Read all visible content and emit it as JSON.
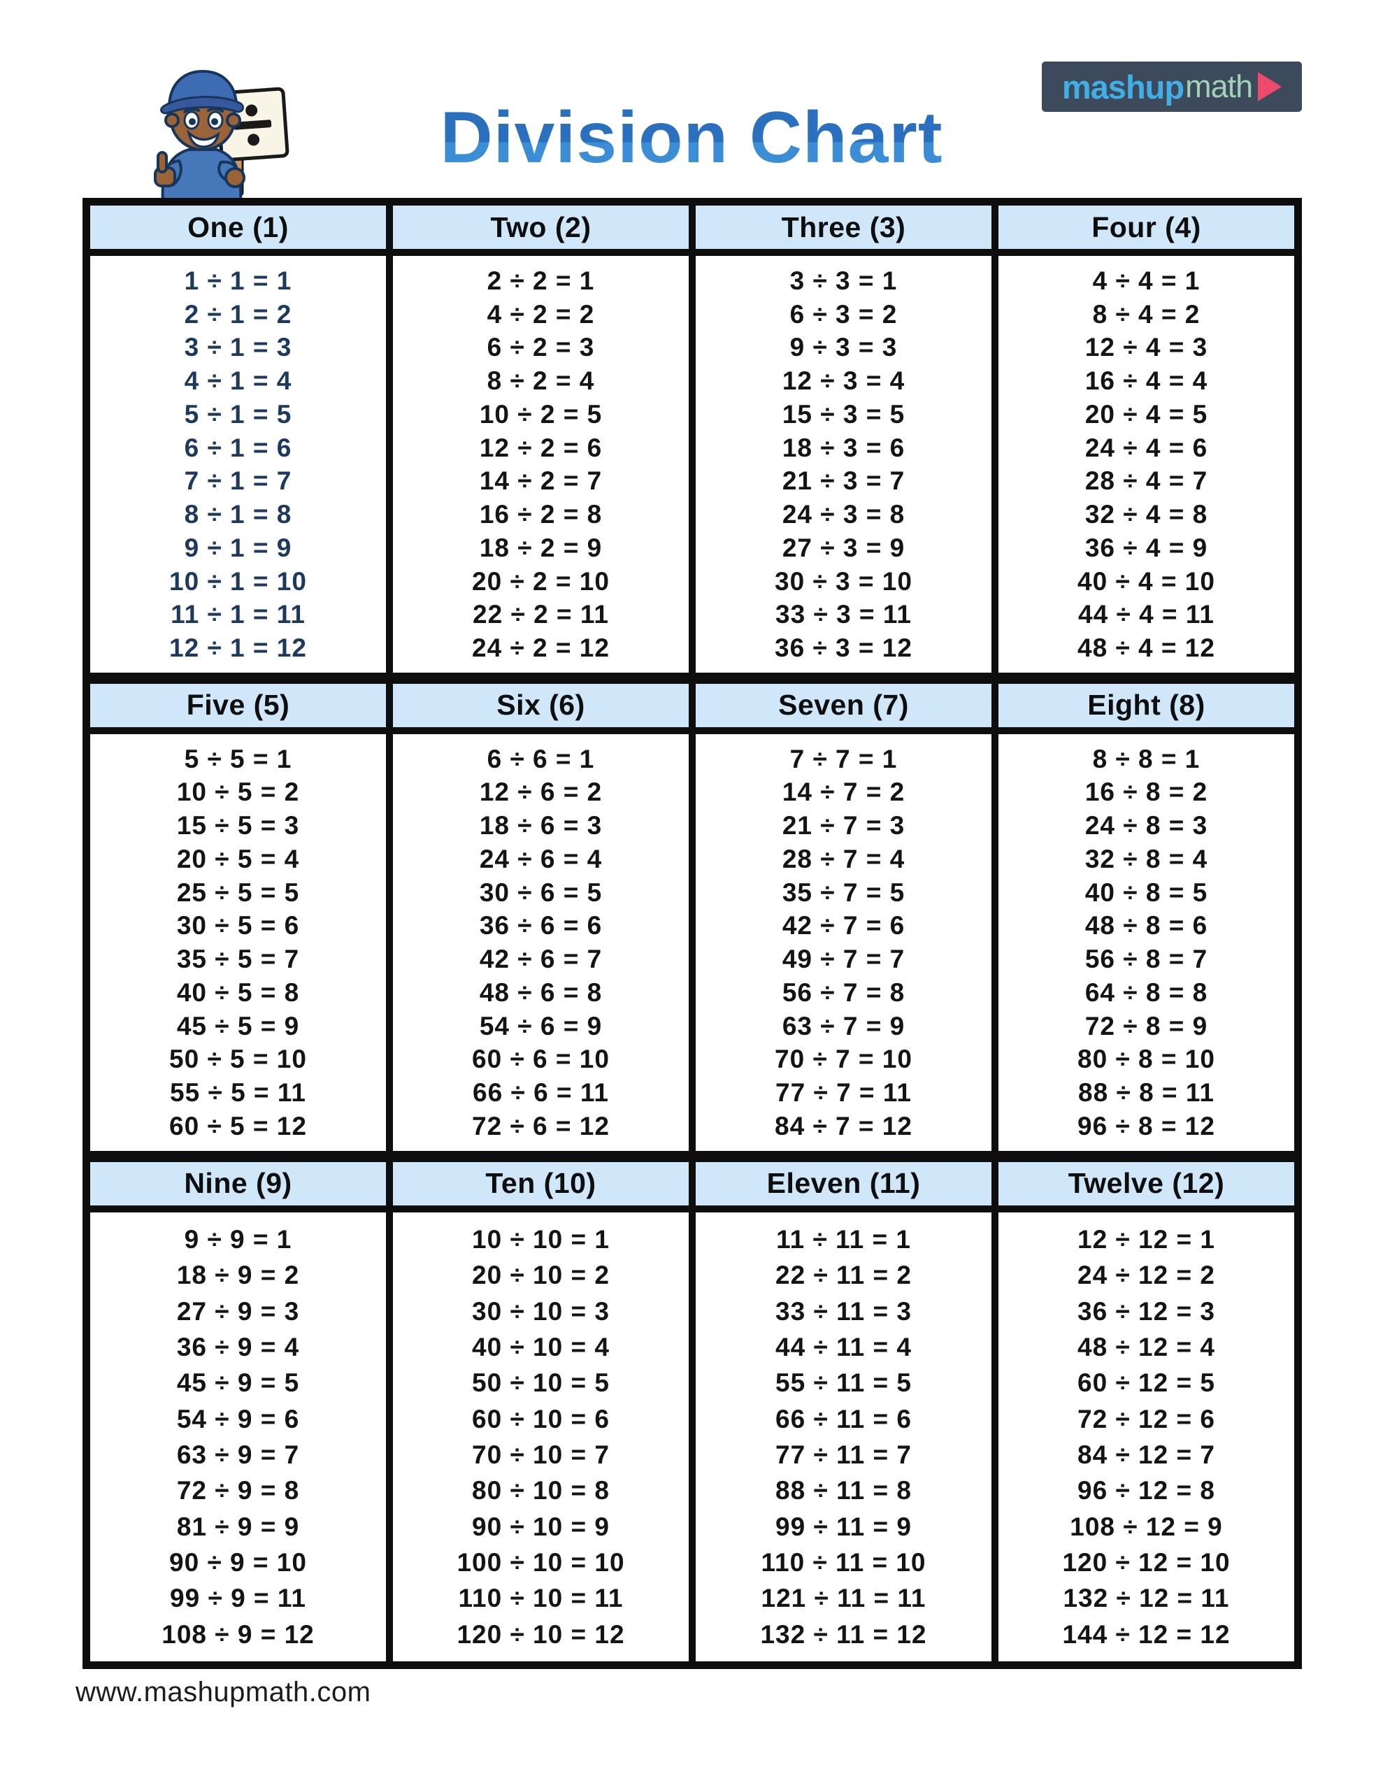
{
  "page": {
    "title": "Division Chart",
    "url": "www.mashupmath.com",
    "logo": {
      "part1": "mashup",
      "part2": "math",
      "play_icon": "play-triangle-icon"
    },
    "mascot": "cartoon-boy-thumbs-up-holding-division-sign"
  },
  "colors": {
    "title_blue": "#2b7ac8",
    "header_cell_bg": "#cfe7f8",
    "table_border": "#0e0e0e",
    "fact_default": "#141414",
    "fact_highlight_navy": "#1d3a5e",
    "logo_bg": "#3d4a5b",
    "logo_blue": "#41afe6",
    "logo_green": "#9ed3b6",
    "logo_pink": "#ec4b6c"
  },
  "table": {
    "sections": [
      {
        "label": "One (1)",
        "ink": "navy",
        "facts": [
          "1 ÷ 1 = 1",
          "2 ÷ 1 = 2",
          "3 ÷ 1 = 3",
          "4 ÷ 1 = 4",
          "5 ÷ 1 = 5",
          "6 ÷ 1 = 6",
          "7 ÷ 1 = 7",
          "8 ÷ 1 = 8",
          "9 ÷ 1 = 9",
          "10 ÷ 1 = 10",
          "11 ÷ 1 = 11",
          "12 ÷ 1 = 12"
        ]
      },
      {
        "label": "Two (2)",
        "ink": "black",
        "facts": [
          "2 ÷ 2 = 1",
          "4 ÷ 2 = 2",
          "6 ÷ 2 = 3",
          "8 ÷ 2 = 4",
          "10 ÷ 2 = 5",
          "12 ÷ 2 = 6",
          "14 ÷ 2 = 7",
          "16 ÷ 2 = 8",
          "18 ÷ 2 = 9",
          "20 ÷ 2 = 10",
          "22 ÷ 2 = 11",
          "24 ÷ 2 = 12"
        ]
      },
      {
        "label": "Three (3)",
        "ink": "black",
        "facts": [
          "3 ÷ 3 = 1",
          "6 ÷ 3 = 2",
          "9 ÷ 3 = 3",
          "12 ÷ 3 = 4",
          "15 ÷ 3 = 5",
          "18 ÷ 3 = 6",
          "21 ÷ 3 = 7",
          "24 ÷ 3 = 8",
          "27 ÷ 3 = 9",
          "30 ÷ 3 = 10",
          "33 ÷ 3 = 11",
          "36 ÷ 3 = 12"
        ]
      },
      {
        "label": "Four (4)",
        "ink": "black",
        "facts": [
          "4 ÷ 4 = 1",
          "8 ÷ 4 = 2",
          "12 ÷ 4 = 3",
          "16 ÷ 4 = 4",
          "20 ÷ 4 = 5",
          "24 ÷ 4 = 6",
          "28 ÷ 4 = 7",
          "32 ÷ 4 = 8",
          "36 ÷ 4 = 9",
          "40 ÷ 4 = 10",
          "44 ÷ 4 = 11",
          "48 ÷ 4 = 12"
        ]
      },
      {
        "label": "Five (5)",
        "ink": "black",
        "facts": [
          "5 ÷ 5 = 1",
          "10 ÷ 5 = 2",
          "15 ÷ 5 = 3",
          "20 ÷ 5 = 4",
          "25 ÷ 5 = 5",
          "30 ÷ 5 = 6",
          "35 ÷ 5 = 7",
          "40 ÷ 5 = 8",
          "45 ÷ 5 = 9",
          "50 ÷ 5 = 10",
          "55 ÷ 5 = 11",
          "60 ÷ 5 = 12"
        ]
      },
      {
        "label": "Six (6)",
        "ink": "black",
        "facts": [
          "6 ÷ 6 = 1",
          "12 ÷ 6 = 2",
          "18 ÷ 6 = 3",
          "24 ÷ 6 = 4",
          "30 ÷ 6 = 5",
          "36 ÷ 6 = 6",
          "42 ÷ 6 = 7",
          "48 ÷ 6 = 8",
          "54 ÷ 6 = 9",
          "60 ÷ 6 = 10",
          "66 ÷ 6 = 11",
          "72 ÷ 6 = 12"
        ]
      },
      {
        "label": "Seven (7)",
        "ink": "black",
        "facts": [
          "7 ÷ 7 = 1",
          "14 ÷ 7 = 2",
          "21 ÷ 7 = 3",
          "28 ÷ 7 = 4",
          "35 ÷ 7 = 5",
          "42 ÷ 7 = 6",
          "49 ÷ 7 = 7",
          "56 ÷ 7 = 8",
          "63 ÷ 7 = 9",
          "70 ÷ 7 = 10",
          "77 ÷ 7 = 11",
          "84 ÷ 7 = 12"
        ]
      },
      {
        "label": "Eight (8)",
        "ink": "black",
        "facts": [
          "8 ÷ 8 = 1",
          "16 ÷ 8 = 2",
          "24 ÷ 8 = 3",
          "32 ÷ 8 = 4",
          "40 ÷ 8 = 5",
          "48 ÷ 8 = 6",
          "56 ÷ 8 = 7",
          "64 ÷ 8 = 8",
          "72 ÷ 8 = 9",
          "80 ÷ 8 = 10",
          "88 ÷ 8 = 11",
          "96 ÷ 8 = 12"
        ]
      },
      {
        "label": "Nine (9)",
        "ink": "black",
        "facts": [
          "9 ÷ 9 = 1",
          "18 ÷ 9 = 2",
          "27 ÷ 9 = 3",
          "36 ÷ 9 = 4",
          "45 ÷ 9 = 5",
          "54 ÷ 9 = 6",
          "63 ÷ 9 = 7",
          "72 ÷ 9 = 8",
          "81 ÷ 9 = 9",
          "90 ÷ 9 = 10",
          "99 ÷ 9 = 11",
          "108 ÷ 9 = 12"
        ]
      },
      {
        "label": "Ten (10)",
        "ink": "black",
        "facts": [
          "10 ÷ 10 = 1",
          "20 ÷ 10 = 2",
          "30 ÷ 10 = 3",
          "40 ÷ 10 = 4",
          "50 ÷ 10 = 5",
          "60 ÷ 10 = 6",
          "70 ÷ 10 = 7",
          "80 ÷ 10 = 8",
          "90 ÷ 10 = 9",
          "100 ÷ 10 = 10",
          "110 ÷ 10 = 11",
          "120 ÷ 10 = 12"
        ]
      },
      {
        "label": "Eleven (11)",
        "ink": "black",
        "facts": [
          "11 ÷ 11 = 1",
          "22 ÷ 11 = 2",
          "33 ÷ 11 = 3",
          "44 ÷ 11 = 4",
          "55 ÷ 11 = 5",
          "66 ÷ 11 = 6",
          "77 ÷ 11 = 7",
          "88 ÷ 11 = 8",
          "99 ÷ 11 = 9",
          "110 ÷ 11 = 10",
          "121 ÷ 11 = 11",
          "132 ÷ 11 = 12"
        ]
      },
      {
        "label": "Twelve (12)",
        "ink": "black",
        "facts": [
          "12 ÷ 12 = 1",
          "24 ÷ 12 = 2",
          "36 ÷ 12 = 3",
          "48 ÷ 12 = 4",
          "60 ÷ 12 = 5",
          "72 ÷ 12 = 6",
          "84 ÷ 12 = 7",
          "96 ÷ 12 = 8",
          "108 ÷ 12 = 9",
          "120 ÷ 12 = 10",
          "132 ÷ 12 = 11",
          "144 ÷ 12 = 12"
        ]
      }
    ]
  }
}
